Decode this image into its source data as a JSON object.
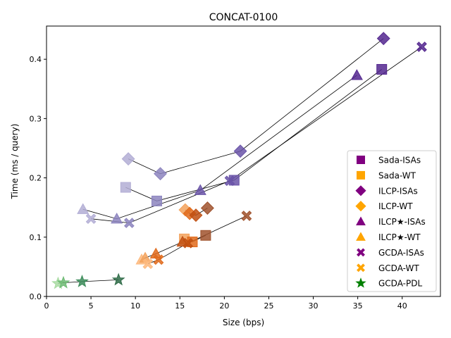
{
  "chart_data": {
    "type": "scatter",
    "title": "CONCAT-0100",
    "xlabel": "Size (bps)",
    "ylabel": "Time (ms / query)",
    "xlim": [
      0,
      44.3
    ],
    "ylim": [
      0,
      0.456
    ],
    "xticks": [
      0,
      5,
      10,
      15,
      20,
      25,
      30,
      35,
      40
    ],
    "yticks": [
      0.0,
      0.1,
      0.2,
      0.3,
      0.4
    ],
    "xtick_labels": [
      "0",
      "5",
      "10",
      "15",
      "20",
      "25",
      "30",
      "35",
      "40"
    ],
    "ytick_labels": [
      "0.0",
      "0.1",
      "0.2",
      "0.3",
      "0.4"
    ],
    "legend_position": "lower-right",
    "legend": [
      {
        "label": "Sada-ISAs",
        "marker": "square",
        "color": "#800080"
      },
      {
        "label": "Sada-WT",
        "marker": "square",
        "color": "#ffa500"
      },
      {
        "label": "ILCP-ISAs",
        "marker": "diamond",
        "color": "#800080"
      },
      {
        "label": "ILCP-WT",
        "marker": "diamond",
        "color": "#ffa500"
      },
      {
        "label": "ILCP★-ISAs",
        "marker": "triangle",
        "color": "#800080"
      },
      {
        "label": "ILCP★-WT",
        "marker": "triangle",
        "color": "#ffa500"
      },
      {
        "label": "GCDA-ISAs",
        "marker": "x",
        "color": "#800080"
      },
      {
        "label": "GCDA-WT",
        "marker": "x",
        "color": "#ffa500"
      },
      {
        "label": "GCDA-PDL",
        "marker": "star",
        "color": "#008000"
      }
    ],
    "series": [
      {
        "name": "Sada-ISAs",
        "marker": "square",
        "points": [
          {
            "x": 8.9,
            "y": 0.184,
            "color": "#b3aed5"
          },
          {
            "x": 12.4,
            "y": 0.161,
            "color": "#8c84be"
          },
          {
            "x": 21.1,
            "y": 0.196,
            "color": "#6a54a8"
          },
          {
            "x": 37.7,
            "y": 0.383,
            "color": "#54278f"
          }
        ]
      },
      {
        "name": "ILCP-ISAs",
        "marker": "diamond",
        "points": [
          {
            "x": 9.2,
            "y": 0.232,
            "color": "#b3aed5"
          },
          {
            "x": 12.8,
            "y": 0.207,
            "color": "#8c84be"
          },
          {
            "x": 21.8,
            "y": 0.245,
            "color": "#6a54a8"
          },
          {
            "x": 37.9,
            "y": 0.435,
            "color": "#54278f"
          }
        ]
      },
      {
        "name": "ILCP★-ISAs",
        "marker": "triangle",
        "points": [
          {
            "x": 4.1,
            "y": 0.147,
            "color": "#b3aed5"
          },
          {
            "x": 7.9,
            "y": 0.131,
            "color": "#8c84be"
          },
          {
            "x": 17.3,
            "y": 0.179,
            "color": "#6a54a8"
          },
          {
            "x": 34.9,
            "y": 0.373,
            "color": "#54278f"
          }
        ]
      },
      {
        "name": "GCDA-ISAs",
        "marker": "x",
        "points": [
          {
            "x": 5.0,
            "y": 0.131,
            "color": "#b3aed5"
          },
          {
            "x": 9.3,
            "y": 0.124,
            "color": "#8c84be"
          },
          {
            "x": 20.6,
            "y": 0.195,
            "color": "#6a54a8"
          },
          {
            "x": 42.2,
            "y": 0.421,
            "color": "#54278f"
          }
        ]
      },
      {
        "name": "Sada-WT",
        "marker": "square",
        "points": [
          {
            "x": 15.5,
            "y": 0.097,
            "color": "#f3a25c"
          },
          {
            "x": 16.4,
            "y": 0.092,
            "color": "#e06a1b"
          },
          {
            "x": 17.9,
            "y": 0.103,
            "color": "#a0522d"
          }
        ]
      },
      {
        "name": "ILCP-WT",
        "marker": "diamond",
        "points": [
          {
            "x": 15.6,
            "y": 0.146,
            "color": "#f3a25c"
          },
          {
            "x": 16.1,
            "y": 0.14,
            "color": "#e06a1b"
          },
          {
            "x": 16.8,
            "y": 0.137,
            "color": "#c04f11"
          },
          {
            "x": 18.1,
            "y": 0.149,
            "color": "#a0522d"
          }
        ]
      },
      {
        "name": "ILCP★-WT",
        "marker": "triangle",
        "points": [
          {
            "x": 10.7,
            "y": 0.062,
            "color": "#fdb97d"
          },
          {
            "x": 11.1,
            "y": 0.065,
            "color": "#f3a25c"
          },
          {
            "x": 12.3,
            "y": 0.072,
            "color": "#e06a1b"
          },
          {
            "x": 15.3,
            "y": 0.092,
            "color": "#c04f11"
          }
        ]
      },
      {
        "name": "GCDA-WT",
        "marker": "x",
        "points": [
          {
            "x": 11.4,
            "y": 0.055,
            "color": "#fdb97d"
          },
          {
            "x": 12.6,
            "y": 0.062,
            "color": "#e06a1b"
          },
          {
            "x": 15.9,
            "y": 0.09,
            "color": "#c04f11"
          },
          {
            "x": 22.5,
            "y": 0.136,
            "color": "#a0522d"
          }
        ]
      },
      {
        "name": "GCDA-PDL",
        "marker": "star",
        "points": [
          {
            "x": 1.3,
            "y": 0.022,
            "color": "#a8dba2"
          },
          {
            "x": 1.9,
            "y": 0.023,
            "color": "#6dba73"
          },
          {
            "x": 4.0,
            "y": 0.025,
            "color": "#3c8c5a"
          },
          {
            "x": 8.1,
            "y": 0.028,
            "color": "#2e6b47"
          }
        ]
      }
    ],
    "connector_lines": [
      {
        "points": [
          {
            "x": 8.9,
            "y": 0.184
          },
          {
            "x": 12.4,
            "y": 0.161
          },
          {
            "x": 21.1,
            "y": 0.196
          },
          {
            "x": 37.7,
            "y": 0.383
          }
        ]
      },
      {
        "points": [
          {
            "x": 9.2,
            "y": 0.232
          },
          {
            "x": 12.8,
            "y": 0.207
          },
          {
            "x": 21.8,
            "y": 0.245
          },
          {
            "x": 37.9,
            "y": 0.435
          }
        ]
      },
      {
        "points": [
          {
            "x": 4.1,
            "y": 0.147
          },
          {
            "x": 7.9,
            "y": 0.131
          },
          {
            "x": 17.3,
            "y": 0.179
          },
          {
            "x": 34.9,
            "y": 0.373
          }
        ]
      },
      {
        "points": [
          {
            "x": 5.0,
            "y": 0.131
          },
          {
            "x": 9.3,
            "y": 0.124
          },
          {
            "x": 20.6,
            "y": 0.195
          },
          {
            "x": 42.2,
            "y": 0.421
          }
        ]
      },
      {
        "points": [
          {
            "x": 15.5,
            "y": 0.097
          },
          {
            "x": 16.4,
            "y": 0.092
          },
          {
            "x": 17.9,
            "y": 0.103
          }
        ]
      },
      {
        "points": [
          {
            "x": 15.6,
            "y": 0.146
          },
          {
            "x": 16.1,
            "y": 0.14
          },
          {
            "x": 16.8,
            "y": 0.137
          },
          {
            "x": 18.1,
            "y": 0.149
          }
        ]
      },
      {
        "points": [
          {
            "x": 10.7,
            "y": 0.062
          },
          {
            "x": 11.1,
            "y": 0.065
          },
          {
            "x": 12.3,
            "y": 0.072
          },
          {
            "x": 15.3,
            "y": 0.092
          }
        ]
      },
      {
        "points": [
          {
            "x": 11.4,
            "y": 0.055
          },
          {
            "x": 12.6,
            "y": 0.062
          },
          {
            "x": 15.9,
            "y": 0.09
          },
          {
            "x": 22.5,
            "y": 0.136
          }
        ]
      },
      {
        "points": [
          {
            "x": 1.3,
            "y": 0.022
          },
          {
            "x": 1.9,
            "y": 0.023
          },
          {
            "x": 4.0,
            "y": 0.025
          },
          {
            "x": 8.1,
            "y": 0.028
          }
        ]
      }
    ]
  }
}
